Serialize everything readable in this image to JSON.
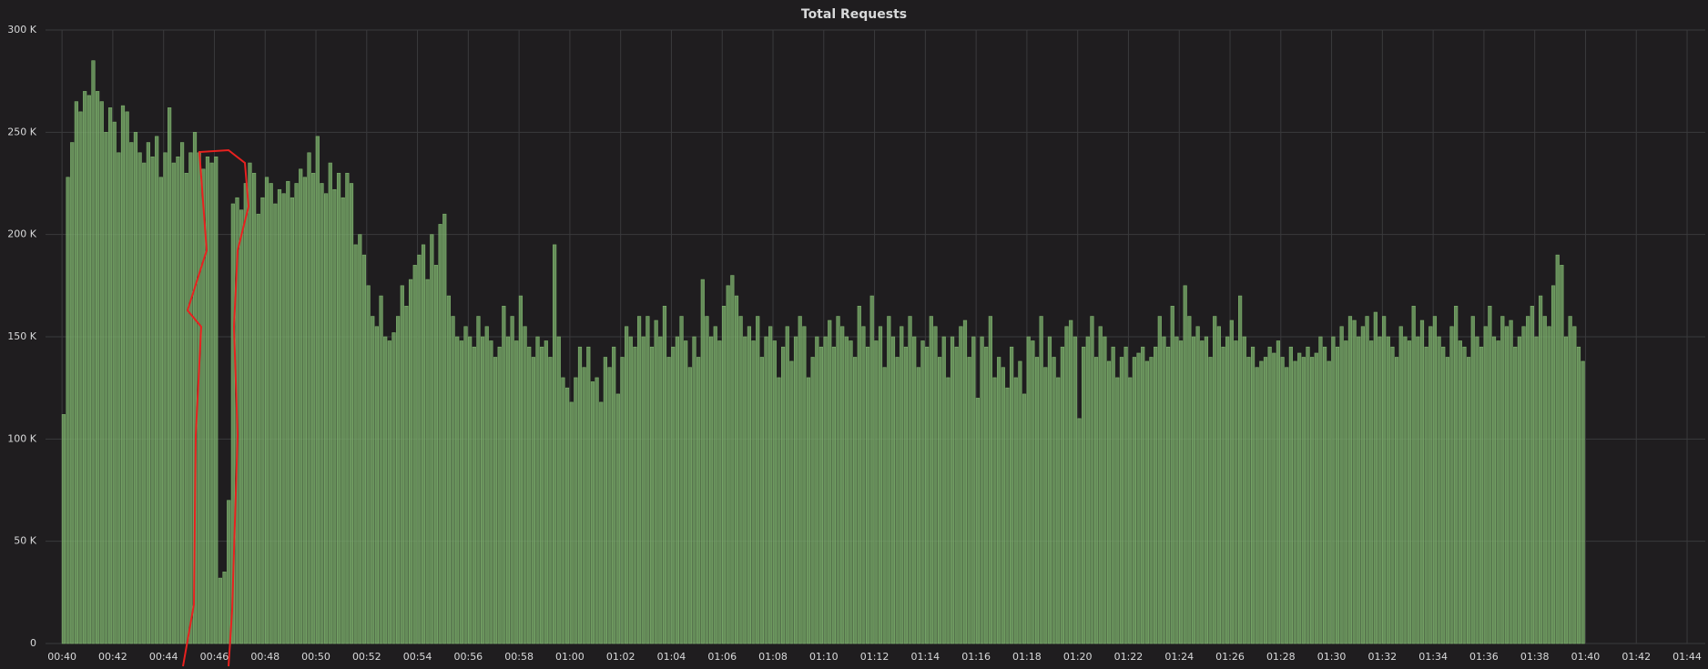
{
  "chart_data": {
    "type": "bar",
    "title": "Total Requests",
    "color": "#7eb26d",
    "grid": true,
    "xlim": [
      2361,
      6283
    ],
    "ylim": [
      0,
      300000
    ],
    "yticks": [
      0,
      {
        "value": 50000,
        "label": "50 K"
      },
      {
        "value": 100000,
        "label": "100 K"
      },
      {
        "value": 150000,
        "label": "150 K"
      },
      {
        "value": 200000,
        "label": "200 K"
      },
      {
        "value": 250000,
        "label": "250 K"
      },
      {
        "value": 300000,
        "label": "300 K"
      }
    ],
    "xticks": [
      {
        "value": 2400,
        "label": "00:40"
      },
      {
        "value": 2520,
        "label": "00:42"
      },
      {
        "value": 2640,
        "label": "00:44"
      },
      {
        "value": 2760,
        "label": "00:46"
      },
      {
        "value": 2880,
        "label": "00:48"
      },
      {
        "value": 3000,
        "label": "00:50"
      },
      {
        "value": 3120,
        "label": "00:52"
      },
      {
        "value": 3240,
        "label": "00:54"
      },
      {
        "value": 3360,
        "label": "00:56"
      },
      {
        "value": 3480,
        "label": "00:58"
      },
      {
        "value": 3600,
        "label": "01:00"
      },
      {
        "value": 3720,
        "label": "01:02"
      },
      {
        "value": 3840,
        "label": "01:04"
      },
      {
        "value": 3960,
        "label": "01:06"
      },
      {
        "value": 4080,
        "label": "01:08"
      },
      {
        "value": 4200,
        "label": "01:10"
      },
      {
        "value": 4320,
        "label": "01:12"
      },
      {
        "value": 4440,
        "label": "01:14"
      },
      {
        "value": 4560,
        "label": "01:16"
      },
      {
        "value": 4680,
        "label": "01:18"
      },
      {
        "value": 4800,
        "label": "01:20"
      },
      {
        "value": 4920,
        "label": "01:22"
      },
      {
        "value": 5040,
        "label": "01:24"
      },
      {
        "value": 5160,
        "label": "01:26"
      },
      {
        "value": 5280,
        "label": "01:28"
      },
      {
        "value": 5400,
        "label": "01:30"
      },
      {
        "value": 5520,
        "label": "01:32"
      },
      {
        "value": 5640,
        "label": "01:34"
      },
      {
        "value": 5760,
        "label": "01:36"
      },
      {
        "value": 5880,
        "label": "01:38"
      },
      {
        "value": 6000,
        "label": "01:40"
      },
      {
        "value": 6120,
        "label": "01:42"
      },
      {
        "value": 6240,
        "label": "01:44"
      }
    ],
    "x": [
      2400,
      2410,
      2420,
      2430,
      2440,
      2450,
      2460,
      2470,
      2480,
      2490,
      2500,
      2510,
      2520,
      2530,
      2540,
      2550,
      2560,
      2570,
      2580,
      2590,
      2600,
      2610,
      2620,
      2630,
      2640,
      2650,
      2660,
      2670,
      2680,
      2690,
      2700,
      2710,
      2720,
      2730,
      2740,
      2750,
      2760,
      2770,
      2780,
      2790,
      2800,
      2810,
      2820,
      2830,
      2840,
      2850,
      2860,
      2870,
      2880,
      2890,
      2900,
      2910,
      2920,
      2930,
      2940,
      2950,
      2960,
      2970,
      2980,
      2990,
      3000,
      3010,
      3020,
      3030,
      3040,
      3050,
      3060,
      3070,
      3080,
      3090,
      3100,
      3110,
      3120,
      3130,
      3140,
      3150,
      3160,
      3170,
      3180,
      3190,
      3200,
      3210,
      3220,
      3230,
      3240,
      3250,
      3260,
      3270,
      3280,
      3290,
      3300,
      3310,
      3320,
      3330,
      3340,
      3350,
      3360,
      3370,
      3380,
      3390,
      3400,
      3410,
      3420,
      3430,
      3440,
      3450,
      3460,
      3470,
      3480,
      3490,
      3500,
      3510,
      3520,
      3530,
      3540,
      3550,
      3560,
      3570,
      3580,
      3590,
      3600,
      3610,
      3620,
      3630,
      3640,
      3650,
      3660,
      3670,
      3680,
      3690,
      3700,
      3710,
      3720,
      3730,
      3740,
      3750,
      3760,
      3770,
      3780,
      3790,
      3800,
      3810,
      3820,
      3830,
      3840,
      3850,
      3860,
      3870,
      3880,
      3890,
      3900,
      3910,
      3920,
      3930,
      3940,
      3950,
      3960,
      3970,
      3980,
      3990,
      4000,
      4010,
      4020,
      4030,
      4040,
      4050,
      4060,
      4070,
      4080,
      4090,
      4100,
      4110,
      4120,
      4130,
      4140,
      4150,
      4160,
      4170,
      4180,
      4190,
      4200,
      4210,
      4220,
      4230,
      4240,
      4250,
      4260,
      4270,
      4280,
      4290,
      4300,
      4310,
      4320,
      4330,
      4340,
      4350,
      4360,
      4370,
      4380,
      4390,
      4400,
      4410,
      4420,
      4430,
      4440,
      4450,
      4460,
      4470,
      4480,
      4490,
      4500,
      4510,
      4520,
      4530,
      4540,
      4550,
      4560,
      4570,
      4580,
      4590,
      4600,
      4610,
      4620,
      4630,
      4640,
      4650,
      4660,
      4670,
      4680,
      4690,
      4700,
      4710,
      4720,
      4730,
      4740,
      4750,
      4760,
      4770,
      4780,
      4790,
      4800,
      4810,
      4820,
      4830,
      4840,
      4850,
      4860,
      4870,
      4880,
      4890,
      4900,
      4910,
      4920,
      4930,
      4940,
      4950,
      4960,
      4970,
      4980,
      4990,
      5000,
      5010,
      5020,
      5030,
      5040,
      5050,
      5060,
      5070,
      5080,
      5090,
      5100,
      5110,
      5120,
      5130,
      5140,
      5150,
      5160,
      5170,
      5180,
      5190,
      5200,
      5210,
      5220,
      5230,
      5240,
      5250,
      5260,
      5270,
      5280,
      5290,
      5300,
      5310,
      5320,
      5330,
      5340,
      5350,
      5360,
      5370,
      5380,
      5390,
      5400,
      5410,
      5420,
      5430,
      5440,
      5450,
      5460,
      5470,
      5480,
      5490,
      5500,
      5510,
      5520,
      5530,
      5540,
      5550,
      5560,
      5570,
      5580,
      5590,
      5600,
      5610,
      5620,
      5630,
      5640,
      5650,
      5660,
      5670,
      5680,
      5690,
      5700,
      5710,
      5720,
      5730,
      5740,
      5750,
      5760,
      5770,
      5780,
      5790,
      5800,
      5810,
      5820,
      5830,
      5840,
      5850,
      5860,
      5870,
      5880,
      5890,
      5900,
      5910,
      5920,
      5930,
      5940,
      5950,
      5960,
      5970,
      5980,
      5990
    ],
    "values": [
      112000,
      228000,
      245000,
      265000,
      260000,
      270000,
      268000,
      285000,
      270000,
      265000,
      250000,
      262000,
      255000,
      240000,
      263000,
      260000,
      245000,
      250000,
      240000,
      235000,
      245000,
      238000,
      248000,
      228000,
      240000,
      262000,
      235000,
      238000,
      245000,
      230000,
      240000,
      250000,
      240000,
      232000,
      238000,
      235000,
      238000,
      32000,
      35000,
      70000,
      215000,
      218000,
      212000,
      225000,
      235000,
      230000,
      210000,
      218000,
      228000,
      225000,
      215000,
      222000,
      220000,
      226000,
      218000,
      225000,
      232000,
      228000,
      240000,
      230000,
      248000,
      225000,
      220000,
      235000,
      222000,
      230000,
      218000,
      230000,
      225000,
      195000,
      200000,
      190000,
      175000,
      160000,
      155000,
      170000,
      150000,
      148000,
      152000,
      160000,
      175000,
      165000,
      178000,
      185000,
      190000,
      195000,
      178000,
      200000,
      185000,
      205000,
      210000,
      170000,
      160000,
      150000,
      148000,
      155000,
      150000,
      145000,
      160000,
      150000,
      155000,
      148000,
      140000,
      145000,
      165000,
      150000,
      160000,
      148000,
      170000,
      155000,
      145000,
      140000,
      150000,
      145000,
      148000,
      140000,
      195000,
      150000,
      130000,
      125000,
      118000,
      130000,
      145000,
      135000,
      145000,
      128000,
      130000,
      118000,
      140000,
      135000,
      145000,
      122000,
      140000,
      155000,
      150000,
      145000,
      160000,
      150000,
      160000,
      145000,
      158000,
      150000,
      165000,
      140000,
      145000,
      150000,
      160000,
      148000,
      135000,
      150000,
      140000,
      178000,
      160000,
      150000,
      155000,
      148000,
      165000,
      175000,
      180000,
      170000,
      160000,
      150000,
      155000,
      148000,
      160000,
      140000,
      150000,
      155000,
      148000,
      130000,
      145000,
      155000,
      138000,
      150000,
      160000,
      155000,
      130000,
      140000,
      150000,
      145000,
      150000,
      158000,
      145000,
      160000,
      155000,
      150000,
      148000,
      140000,
      165000,
      155000,
      145000,
      170000,
      148000,
      155000,
      135000,
      160000,
      150000,
      140000,
      155000,
      145000,
      160000,
      150000,
      135000,
      148000,
      145000,
      160000,
      155000,
      140000,
      150000,
      130000,
      150000,
      145000,
      155000,
      158000,
      140000,
      150000,
      120000,
      150000,
      145000,
      160000,
      130000,
      140000,
      135000,
      125000,
      145000,
      130000,
      138000,
      122000,
      150000,
      148000,
      140000,
      160000,
      135000,
      150000,
      140000,
      130000,
      145000,
      155000,
      158000,
      150000,
      110000,
      145000,
      150000,
      160000,
      140000,
      155000,
      150000,
      138000,
      145000,
      130000,
      140000,
      145000,
      130000,
      140000,
      142000,
      145000,
      138000,
      140000,
      145000,
      160000,
      150000,
      145000,
      165000,
      150000,
      148000,
      175000,
      160000,
      150000,
      155000,
      148000,
      150000,
      140000,
      160000,
      155000,
      145000,
      150000,
      158000,
      148000,
      170000,
      150000,
      140000,
      145000,
      135000,
      138000,
      140000,
      145000,
      142000,
      148000,
      140000,
      135000,
      145000,
      138000,
      142000,
      140000,
      145000,
      140000,
      142000,
      150000,
      145000,
      138000,
      150000,
      145000,
      155000,
      148000,
      160000,
      158000,
      150000,
      155000,
      160000,
      148000,
      162000,
      150000,
      160000,
      150000,
      145000,
      140000,
      155000,
      150000,
      148000,
      165000,
      150000,
      158000,
      145000,
      155000,
      160000,
      150000,
      145000,
      140000,
      155000,
      165000,
      148000,
      145000,
      140000,
      160000,
      150000,
      145000,
      155000,
      165000,
      150000,
      148000,
      160000,
      155000,
      158000,
      145000,
      150000,
      155000,
      160000,
      165000,
      150000,
      170000,
      160000,
      155000,
      175000,
      190000,
      185000,
      150000,
      160000,
      155000,
      145000,
      138000
    ]
  }
}
